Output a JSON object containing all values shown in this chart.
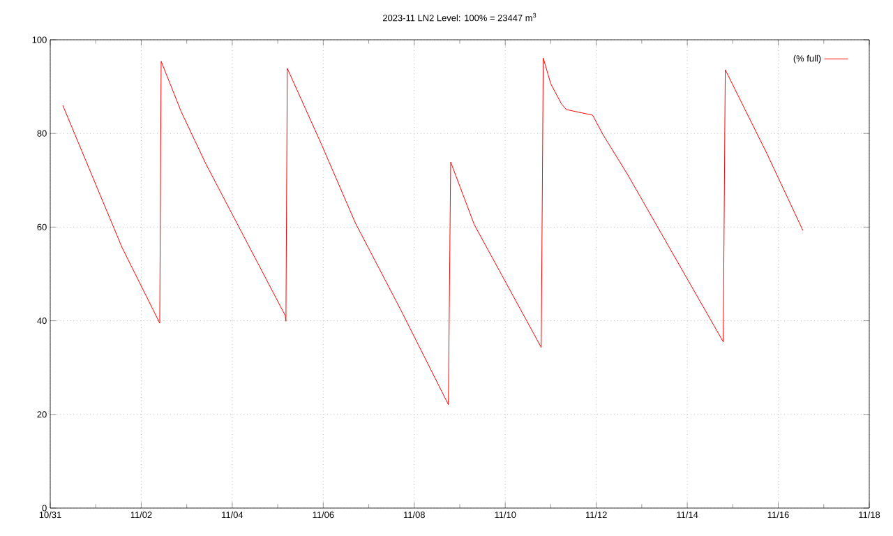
{
  "chart_data": {
    "type": "line",
    "title": "2023-11 LN2 Level: 100% = 23447 m$^{3}$",
    "x": [
      "2023-10-31T06:37",
      "2023-11-01T13:55",
      "2023-11-02T09:45",
      "2023-11-02T10:30",
      "2023-11-02T21:07",
      "2023-11-03T10:05",
      "2023-11-05T03:58",
      "2023-11-05T04:19",
      "2023-11-05T05:02",
      "2023-11-05T22:48",
      "2023-11-06T17:02",
      "2023-11-07T17:02",
      "2023-11-08T18:00",
      "2023-11-08T19:12",
      "2023-11-09T07:41",
      "2023-11-10T18:58",
      "2023-11-10T20:02",
      "2023-11-11T00:00",
      "2023-11-11T05:31",
      "2023-11-11T08:10",
      "2023-11-11T22:05",
      "2023-11-12T03:36",
      "2023-11-12T16:34",
      "2023-11-14T18:58",
      "2023-11-14T20:02",
      "2023-11-15T18:00",
      "2023-11-16T12:58"
    ],
    "series": [
      {
        "name": "(% full)",
        "color": "#ff0000",
        "values": [
          86.0,
          55.6,
          39.5,
          95.4,
          84.6,
          73.5,
          41.1,
          39.9,
          93.9,
          77.9,
          60.8,
          42.2,
          22.1,
          73.9,
          60.5,
          34.3,
          96.1,
          90.6,
          86.4,
          85.1,
          83.9,
          79.7,
          71.2,
          35.5,
          93.6,
          75.7,
          59.3
        ]
      }
    ],
    "xlim": [
      "2023-10-31",
      "2023-11-18"
    ],
    "xticks": [
      {
        "value": "2023-10-31",
        "label": "10/31"
      },
      {
        "value": "2023-11-01",
        "label": null
      },
      {
        "value": "2023-11-02",
        "label": "11/02"
      },
      {
        "value": "2023-11-03",
        "label": null
      },
      {
        "value": "2023-11-04",
        "label": "11/04"
      },
      {
        "value": "2023-11-05",
        "label": null
      },
      {
        "value": "2023-11-06",
        "label": "11/06"
      },
      {
        "value": "2023-11-07",
        "label": null
      },
      {
        "value": "2023-11-08",
        "label": "11/08"
      },
      {
        "value": "2023-11-09",
        "label": null
      },
      {
        "value": "2023-11-10",
        "label": "11/10"
      },
      {
        "value": "2023-11-11",
        "label": null
      },
      {
        "value": "2023-11-12",
        "label": "11/12"
      },
      {
        "value": "2023-11-13",
        "label": null
      },
      {
        "value": "2023-11-14",
        "label": "11/14"
      },
      {
        "value": "2023-11-15",
        "label": null
      },
      {
        "value": "2023-11-16",
        "label": "11/16"
      },
      {
        "value": "2023-11-17",
        "label": null
      },
      {
        "value": "2023-11-18",
        "label": "11/18"
      }
    ],
    "ylim": [
      0,
      100
    ],
    "yticks": [
      0,
      20,
      40,
      60,
      80,
      100
    ],
    "grid": true,
    "legend": "top right",
    "marker": "none",
    "line_style": "solid"
  }
}
